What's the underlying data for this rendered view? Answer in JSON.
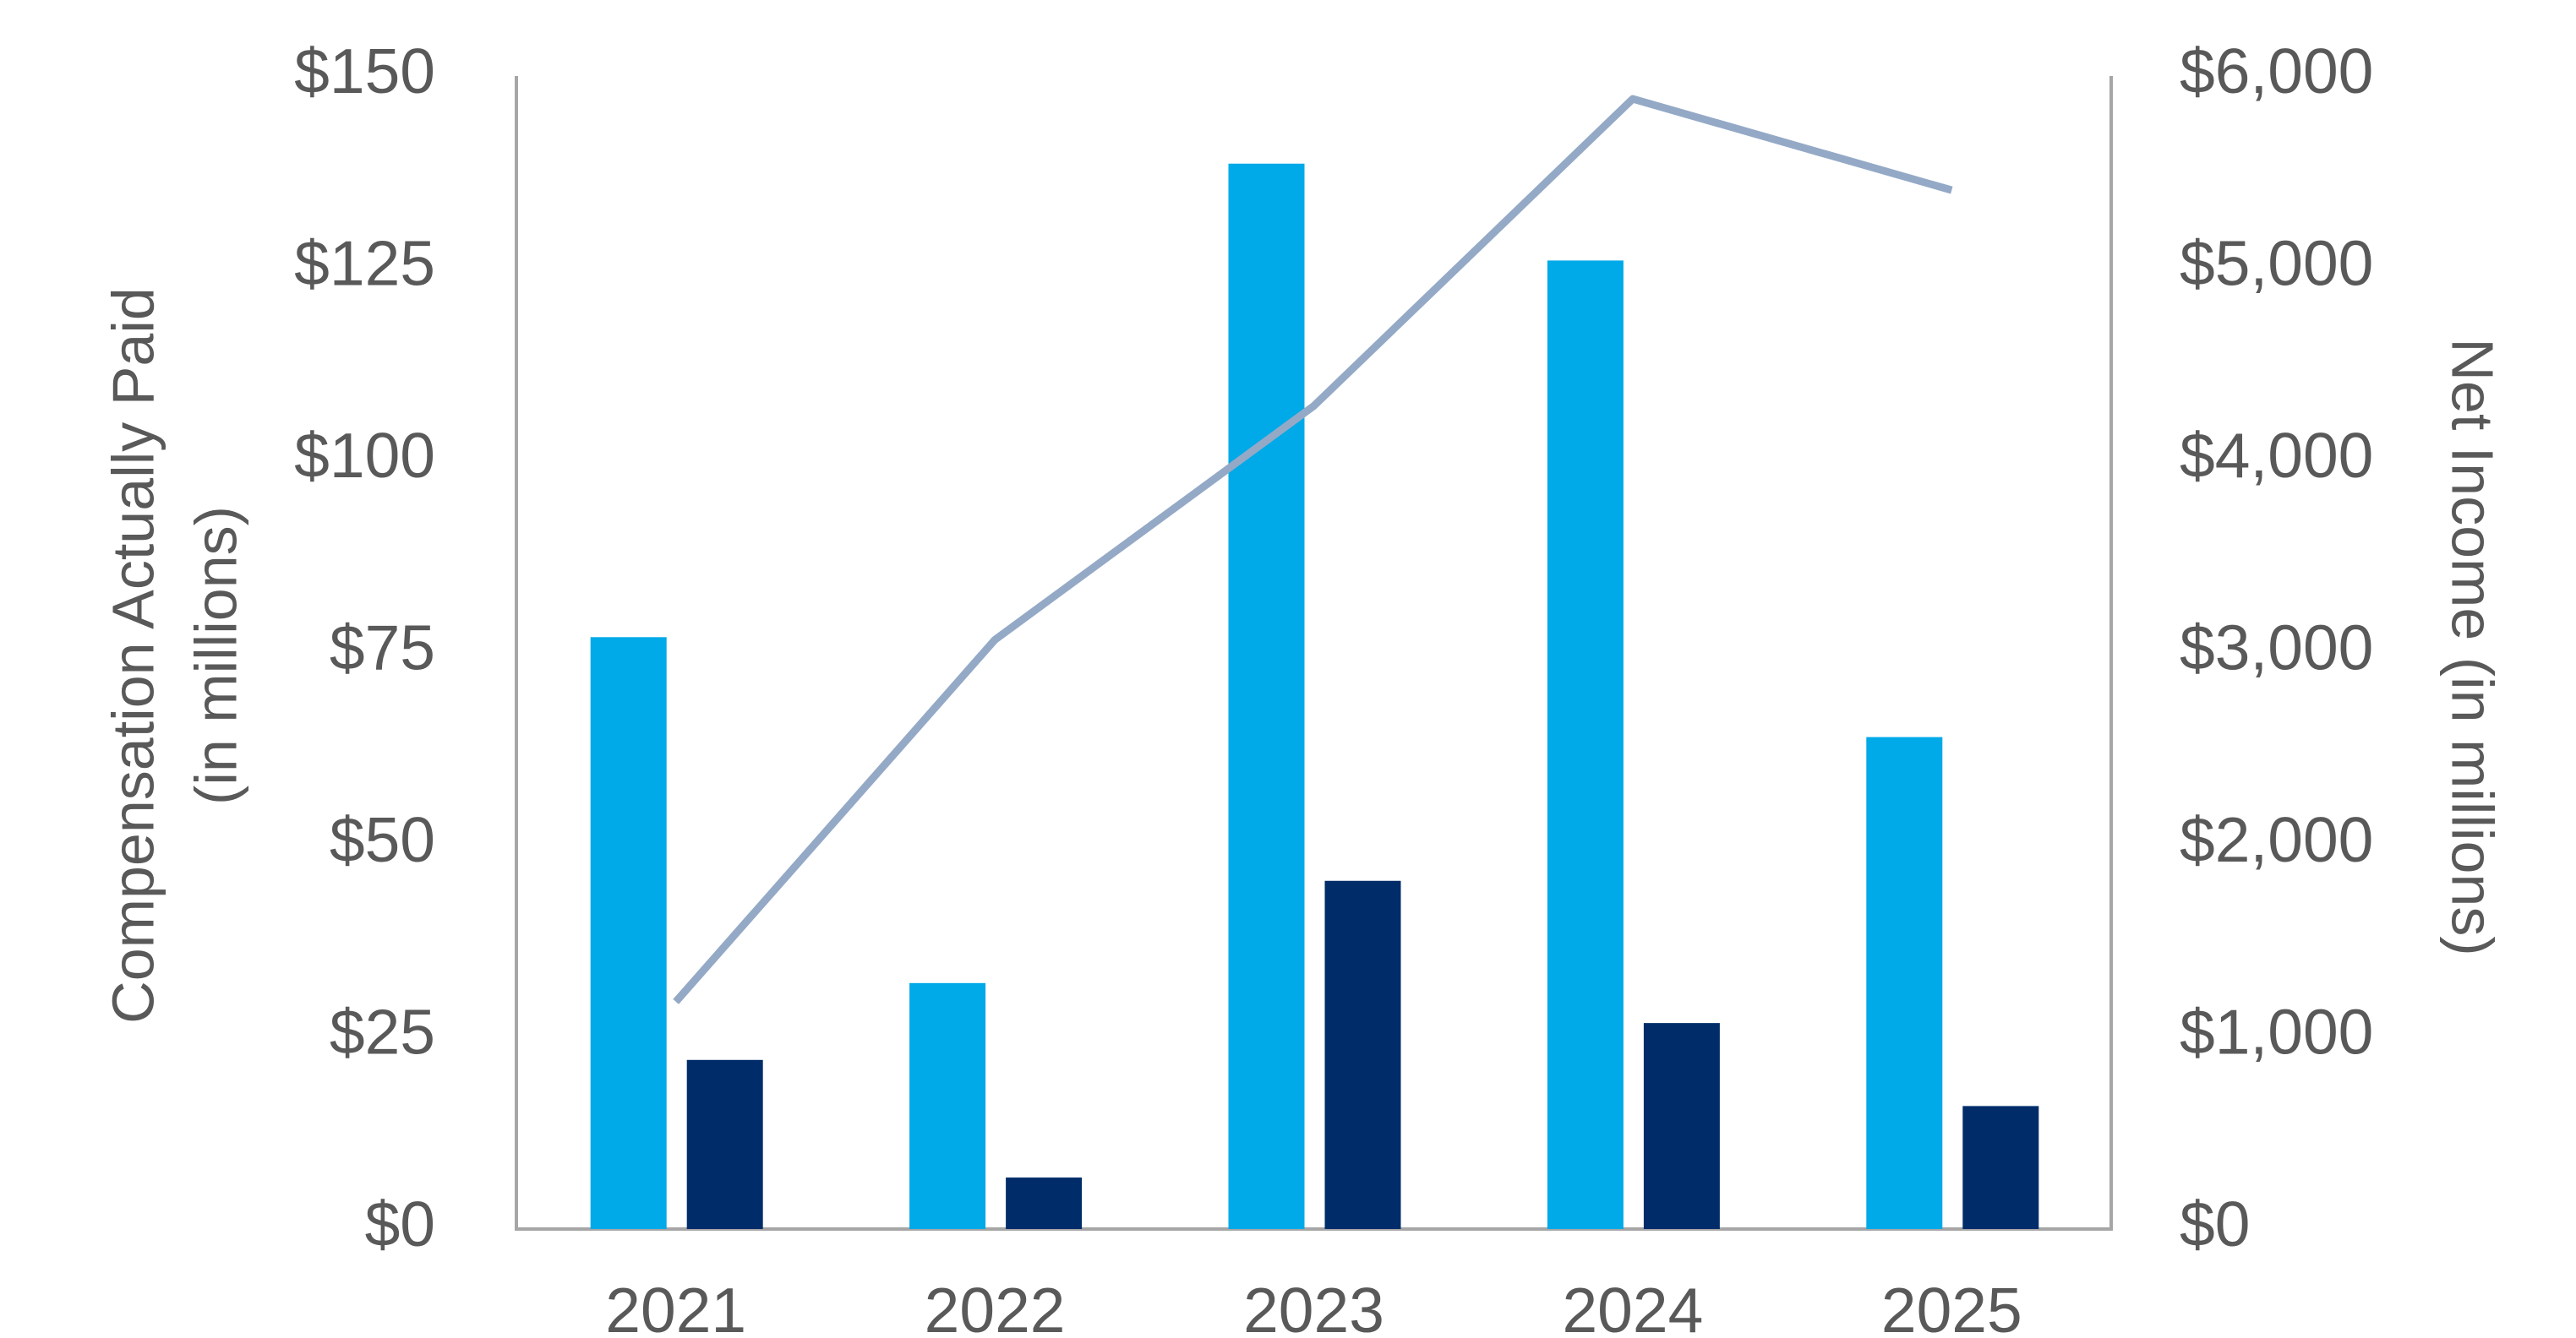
{
  "chart_data": {
    "type": "bar",
    "y_label": [
      "Compensation Actually Paid",
      "(in millions)"
    ],
    "y2_label": "Net Income (in millions)",
    "categories": [
      "2021",
      "2022",
      "2023",
      "2024",
      "2025"
    ],
    "series": [
      {
        "type": "bar",
        "color": "#00a9e8",
        "values": [
          77,
          32,
          138.6,
          126,
          64
        ]
      },
      {
        "type": "bar",
        "color": "#002d6a",
        "values": [
          22,
          6.7,
          45.3,
          26.8,
          16
        ]
      },
      {
        "type": "line",
        "axis": "y2",
        "color": "#94a9c6",
        "values": [
          1183,
          3066,
          4283,
          5881,
          5406
        ]
      }
    ],
    "ylim": [
      0,
      150
    ],
    "yticks": [
      {
        "value": 0,
        "label": "$0"
      },
      {
        "value": 25,
        "label": "$25"
      },
      {
        "value": 50,
        "label": "$50"
      },
      {
        "value": 75,
        "label": "$75"
      },
      {
        "value": 100,
        "label": "$100"
      },
      {
        "value": 125,
        "label": "$125"
      },
      {
        "value": 150,
        "label": "$150"
      }
    ],
    "y2lim": [
      0,
      6000
    ],
    "y2ticks": [
      {
        "value": 0,
        "label": "$0"
      },
      {
        "value": 1000,
        "label": "$1,000"
      },
      {
        "value": 2000,
        "label": "$2,000"
      },
      {
        "value": 3000,
        "label": "$3,000"
      },
      {
        "value": 4000,
        "label": "$4,000"
      },
      {
        "value": 5000,
        "label": "$5,000"
      },
      {
        "value": 6000,
        "label": "$6,000"
      }
    ],
    "grid": false
  }
}
